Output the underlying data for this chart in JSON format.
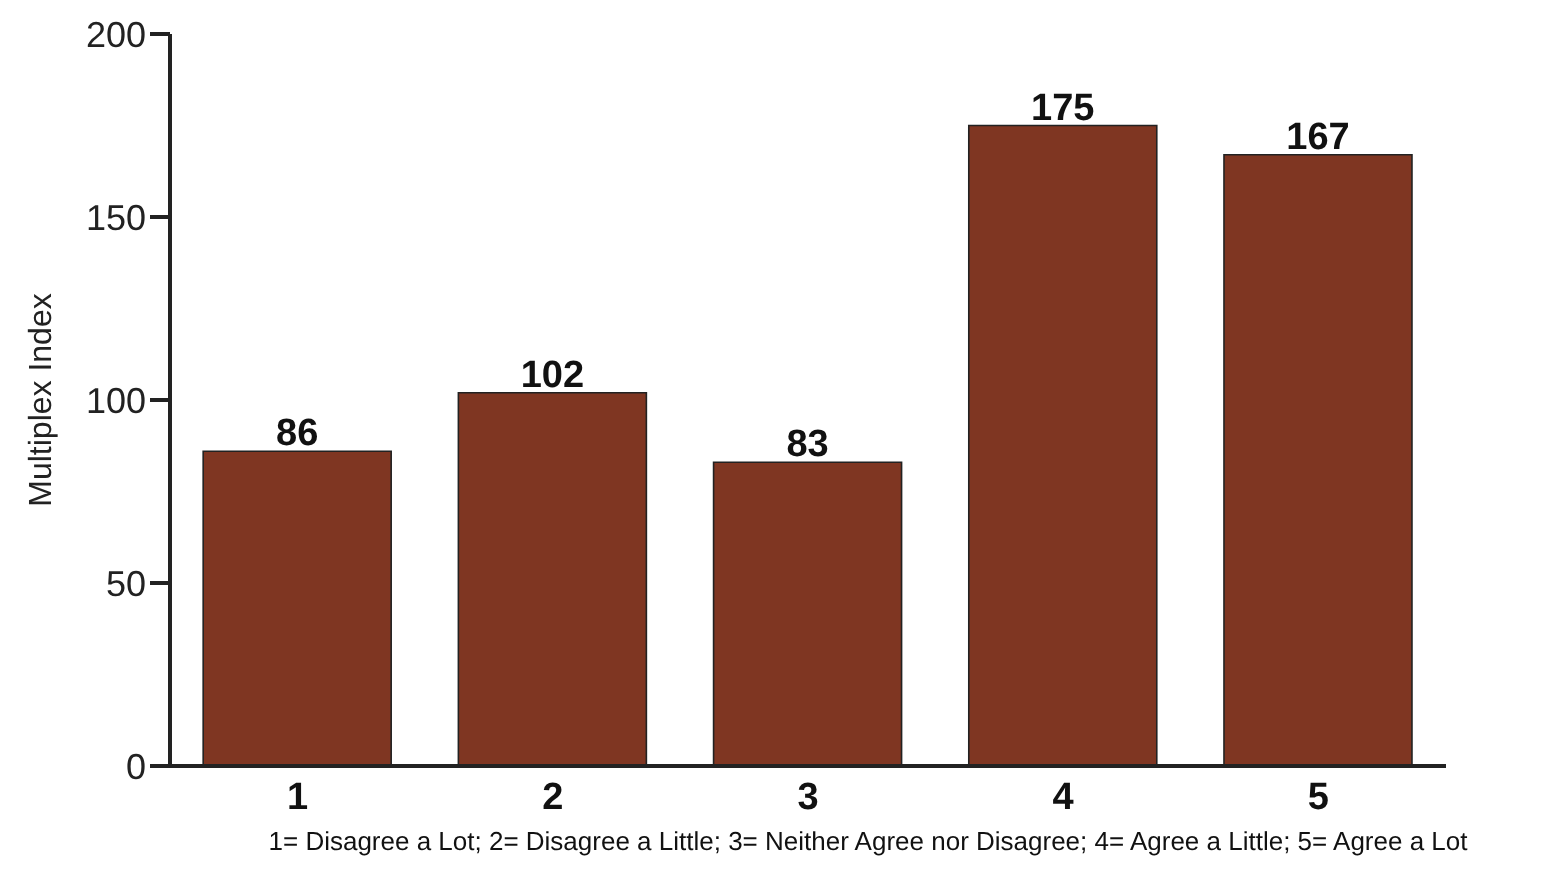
{
  "chart_data": {
    "type": "bar",
    "categories": [
      "1",
      "2",
      "3",
      "4",
      "5"
    ],
    "values": [
      86,
      102,
      83,
      175,
      167
    ],
    "color": "#7f3622",
    "ylim": [
      0,
      200
    ],
    "yticks": [
      0,
      50,
      100,
      150,
      200
    ],
    "ylabel": "Multiplex Index",
    "xlabel": "1= Disagree a Lot; 2= Disagree a Little; 3= Neither Agree nor Disagree; 4= Agree a Little; 5= Agree a Lot",
    "data_labels": true,
    "grid": false
  }
}
